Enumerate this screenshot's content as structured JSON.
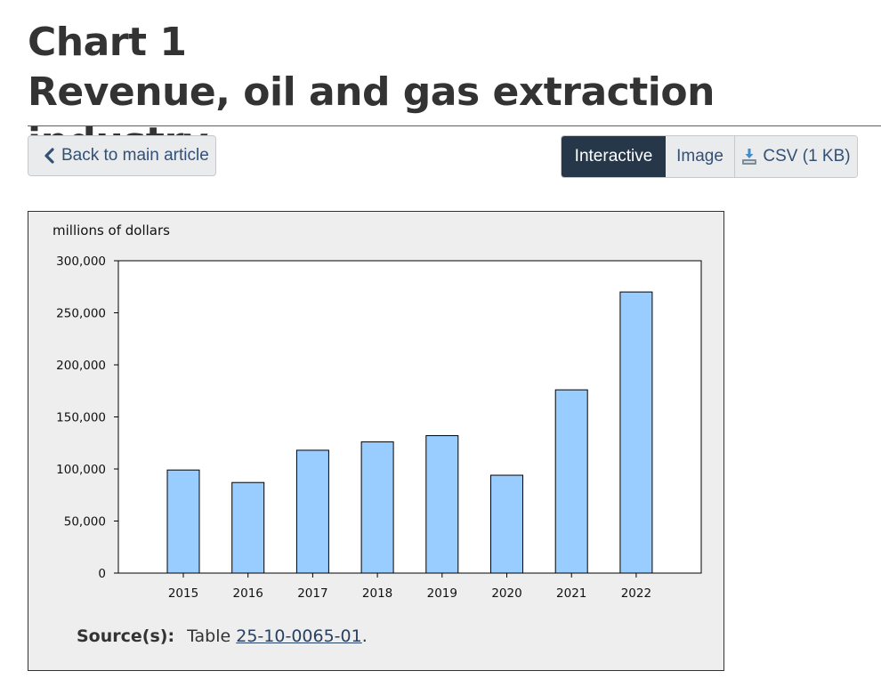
{
  "header": {
    "title_line1": "Chart 1",
    "title_line2": "Revenue, oil and gas extraction industry"
  },
  "toolbar": {
    "back_label": "Back to main article",
    "view_options": [
      {
        "label": "Interactive",
        "active": true
      },
      {
        "label": "Image",
        "active": false
      },
      {
        "label": "CSV (1 KB)",
        "active": false
      }
    ]
  },
  "chart_data": {
    "type": "bar",
    "ylabel": "millions of dollars",
    "categories": [
      "2015",
      "2016",
      "2017",
      "2018",
      "2019",
      "2020",
      "2021",
      "2022"
    ],
    "values": [
      99000,
      87000,
      118000,
      126000,
      132000,
      94000,
      176000,
      270000
    ],
    "ylim": [
      0,
      300000
    ],
    "yticks": [
      0,
      50000,
      100000,
      150000,
      200000,
      250000,
      300000
    ],
    "ytick_labels": [
      "0",
      "50,000",
      "100,000",
      "150,000",
      "200,000",
      "250,000",
      "300,000"
    ],
    "bar_color": "#99ccff",
    "legend": "none",
    "grid": false
  },
  "source": {
    "label": "Source(s):",
    "prefix": "Table",
    "link_text": "25-10-0065-01",
    "suffix": "."
  },
  "colors": {
    "accent_rule": "#af3c43",
    "active_button": "#26374a",
    "link": "#284162"
  }
}
